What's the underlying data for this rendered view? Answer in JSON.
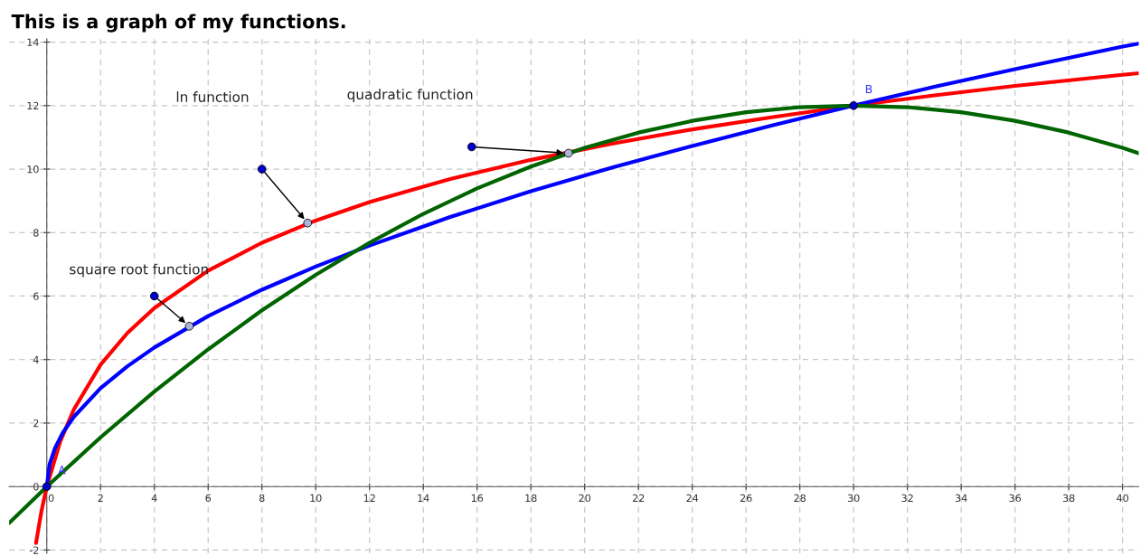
{
  "chart_data": {
    "type": "line",
    "title": "This is a graph of my functions.",
    "xlim": [
      -1.4,
      40.6
    ],
    "ylim": [
      -2.1,
      14.1
    ],
    "xticks": [
      0,
      2,
      4,
      6,
      8,
      10,
      12,
      14,
      16,
      18,
      20,
      22,
      24,
      26,
      28,
      30,
      32,
      34,
      36,
      38,
      40
    ],
    "yticks": [
      -2,
      0,
      2,
      4,
      6,
      8,
      10,
      12,
      14
    ],
    "grid": true,
    "line_style": "solid",
    "series": [
      {
        "color": "#ff0000",
        "x": [
          -0.4,
          -0.2,
          0,
          0.5,
          1,
          2,
          3,
          4,
          6,
          8,
          10,
          12,
          15,
          18,
          21,
          24,
          27,
          30,
          33,
          36,
          40,
          40.6
        ],
        "values": [
          -1.78,
          -0.78,
          0,
          1.42,
          2.42,
          3.84,
          4.84,
          5.62,
          6.8,
          7.68,
          8.38,
          8.96,
          9.69,
          10.29,
          10.8,
          11.25,
          11.64,
          12.0,
          12.32,
          12.62,
          12.97,
          13.02
        ]
      },
      {
        "color": "#0000ff",
        "x": [
          0,
          0.1,
          0.3,
          0.6,
          1,
          2,
          3,
          4,
          6,
          8,
          10,
          12,
          15,
          18,
          21,
          24,
          27,
          30,
          33,
          36,
          40,
          40.6
        ],
        "values": [
          0,
          0.69,
          1.2,
          1.7,
          2.19,
          3.1,
          3.79,
          4.38,
          5.37,
          6.2,
          6.93,
          7.59,
          8.49,
          9.3,
          10.04,
          10.73,
          11.38,
          12.0,
          12.59,
          13.15,
          13.86,
          13.95
        ]
      },
      {
        "color": "#006400",
        "x": [
          -1.4,
          0,
          2,
          4,
          6,
          8,
          10,
          12,
          14,
          16,
          18,
          20,
          22,
          24,
          26,
          28,
          30,
          32,
          34,
          36,
          38,
          40,
          40.6
        ],
        "values": [
          -1.15,
          0,
          1.55,
          2.99,
          4.32,
          5.55,
          6.67,
          7.68,
          8.59,
          9.39,
          10.08,
          10.67,
          11.15,
          11.52,
          11.79,
          11.95,
          12.0,
          11.95,
          11.79,
          11.52,
          11.15,
          10.67,
          10.5
        ]
      },
      {
        "type": "scatter",
        "color": "#0000cc",
        "x": [
          0,
          30
        ],
        "values": [
          0,
          12
        ]
      },
      {
        "type": "scatter",
        "color": "#0000cc",
        "x": [
          8,
          15.8,
          4
        ],
        "values": [
          10,
          10.7,
          6
        ]
      },
      {
        "type": "scatter",
        "color": "#aab4d8",
        "x": [
          9.7,
          19.4,
          5.3
        ],
        "values": [
          8.3,
          10.5,
          5.05
        ]
      }
    ],
    "annotations": [
      "ln function",
      "quadratic function",
      "square root function",
      {
        "text": "A",
        "x": 0,
        "y": 0
      },
      {
        "text": "B",
        "x": 30,
        "y": 12
      }
    ]
  }
}
